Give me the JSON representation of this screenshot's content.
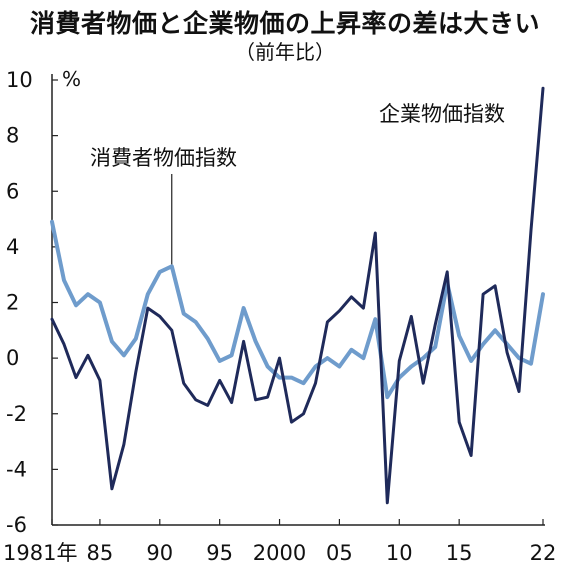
{
  "chart_data": {
    "type": "line",
    "title": "消費者物価と企業物価の上昇率の差は大きい",
    "subtitle": "（前年比）",
    "yunit": "%",
    "ylim": [
      -6,
      10
    ],
    "yticks": [
      -6,
      -4,
      -2,
      0,
      2,
      4,
      6,
      8,
      10
    ],
    "xlim": [
      1981,
      2022
    ],
    "xticks": [
      {
        "value": 1981,
        "label": "1981年"
      },
      {
        "value": 1985,
        "label": "85"
      },
      {
        "value": 1990,
        "label": "90"
      },
      {
        "value": 1995,
        "label": "95"
      },
      {
        "value": 2000,
        "label": "2000"
      },
      {
        "value": 2005,
        "label": "05"
      },
      {
        "value": 2010,
        "label": "10"
      },
      {
        "value": 2015,
        "label": "15"
      },
      {
        "value": 2022,
        "label": "22"
      }
    ],
    "colors": {
      "consumer": "#6f9ccc",
      "corporate": "#1f2a5a"
    },
    "series": [
      {
        "name": "消費者物価指数",
        "color": "#6f9ccc",
        "x": [
          1981,
          1982,
          1983,
          1984,
          1985,
          1986,
          1987,
          1988,
          1989,
          1990,
          1991,
          1992,
          1993,
          1994,
          1995,
          1996,
          1997,
          1998,
          1999,
          2000,
          2001,
          2002,
          2003,
          2004,
          2005,
          2006,
          2007,
          2008,
          2009,
          2010,
          2011,
          2012,
          2013,
          2014,
          2015,
          2016,
          2017,
          2018,
          2019,
          2020,
          2021,
          2022
        ],
        "values": [
          4.9,
          2.8,
          1.9,
          2.3,
          2.0,
          0.6,
          0.1,
          0.7,
          2.3,
          3.1,
          3.3,
          1.6,
          1.3,
          0.7,
          -0.1,
          0.1,
          1.8,
          0.6,
          -0.3,
          -0.7,
          -0.7,
          -0.9,
          -0.3,
          0.0,
          -0.3,
          0.3,
          0.0,
          1.4,
          -1.4,
          -0.7,
          -0.3,
          0.0,
          0.4,
          2.7,
          0.8,
          -0.1,
          0.5,
          1.0,
          0.5,
          0.0,
          -0.2,
          2.3
        ]
      },
      {
        "name": "企業物価指数",
        "color": "#1f2a5a",
        "x": [
          1981,
          1982,
          1983,
          1984,
          1985,
          1986,
          1987,
          1988,
          1989,
          1990,
          1991,
          1992,
          1993,
          1994,
          1995,
          1996,
          1997,
          1998,
          1999,
          2000,
          2001,
          2002,
          2003,
          2004,
          2005,
          2006,
          2007,
          2008,
          2009,
          2010,
          2011,
          2012,
          2013,
          2014,
          2015,
          2016,
          2017,
          2018,
          2019,
          2020,
          2021,
          2022
        ],
        "values": [
          1.4,
          0.5,
          -0.7,
          0.1,
          -0.8,
          -4.7,
          -3.1,
          -0.5,
          1.8,
          1.5,
          1.0,
          -0.9,
          -1.5,
          -1.7,
          -0.8,
          -1.6,
          0.6,
          -1.5,
          -1.4,
          0.0,
          -2.3,
          -2.0,
          -0.9,
          1.3,
          1.7,
          2.2,
          1.8,
          4.5,
          -5.2,
          -0.1,
          1.5,
          -0.9,
          1.2,
          3.1,
          -2.3,
          -3.5,
          2.3,
          2.6,
          0.2,
          -1.2,
          4.6,
          9.7
        ]
      }
    ],
    "annotations": [
      {
        "text": "消費者物価指数",
        "series": 0
      },
      {
        "text": "企業物価指数",
        "series": 1
      }
    ]
  }
}
